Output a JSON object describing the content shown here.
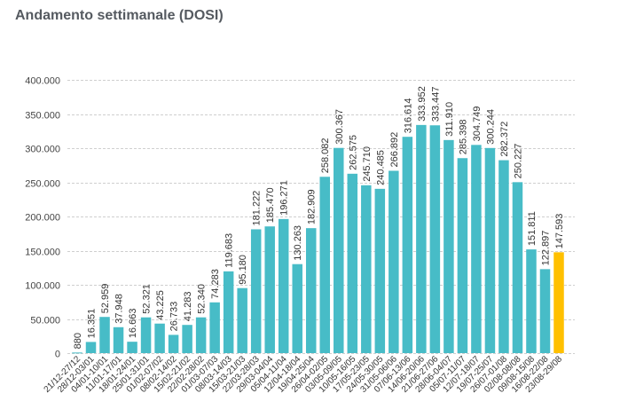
{
  "chart_data": {
    "type": "bar",
    "title": "Andamento settimanale (DOSI)",
    "xlabel": "",
    "ylabel": "",
    "ylim": [
      0,
      400000
    ],
    "yticks": [
      0,
      50000,
      100000,
      150000,
      200000,
      250000,
      300000,
      350000,
      400000
    ],
    "ytick_labels": [
      "0",
      "50.000",
      "100.000",
      "150.000",
      "200.000",
      "250.000",
      "300.000",
      "350.000",
      "400.000"
    ],
    "grid": true,
    "legend": "none",
    "colors": {
      "default": "#47bcc7",
      "highlight": "#ffc000"
    },
    "highlight_index": 35,
    "categories": [
      "21/12-27/12",
      "28/12-03/01",
      "04/01-10/01",
      "11/01-17/01",
      "18/01-24/01",
      "25/01-31/01",
      "01/02-07/02",
      "08/02-14/02",
      "15/02-21/02",
      "22/02-28/02",
      "01/03-07/03",
      "08/03-14/03",
      "15/03-21/03",
      "22/03-28/03",
      "29/03-04/04",
      "05/04-11/04",
      "12/04-18/04",
      "19/04-25/04",
      "26/04-02/05",
      "03/05-09/05",
      "10/05-16/05",
      "17/05-23/05",
      "24/05-30/05",
      "31/05-06/06",
      "07/06-13/06",
      "14/06-20/06",
      "21/06-27/06",
      "28/06-04/07",
      "05/07-11/07",
      "12/07-18/07",
      "19/07-25/07",
      "26/07-01/08",
      "02/08-08/08",
      "09/08-15/08",
      "16/08-22/08",
      "23/08-29/08"
    ],
    "values": [
      880,
      16351,
      52959,
      37948,
      16663,
      52321,
      43225,
      26733,
      41283,
      52340,
      74283,
      119683,
      95180,
      181222,
      185470,
      196271,
      130263,
      182909,
      258082,
      300367,
      262575,
      245710,
      240485,
      266892,
      316614,
      333952,
      333447,
      311910,
      285398,
      304749,
      300244,
      282372,
      250227,
      151811,
      122897,
      147593
    ],
    "value_labels": [
      "880",
      "16.351",
      "52.959",
      "37.948",
      "16.663",
      "52.321",
      "43.225",
      "26.733",
      "41.283",
      "52.340",
      "74.283",
      "119.683",
      "95.180",
      "181.222",
      "185.470",
      "196.271",
      "130.263",
      "182.909",
      "258.082",
      "300.367",
      "262.575",
      "245.710",
      "240.485",
      "266.892",
      "316.614",
      "333.952",
      "333.447",
      "311.910",
      "285.398",
      "304.749",
      "300.244",
      "282.372",
      "250.227",
      "151.811",
      "122.897",
      "147.593"
    ]
  }
}
